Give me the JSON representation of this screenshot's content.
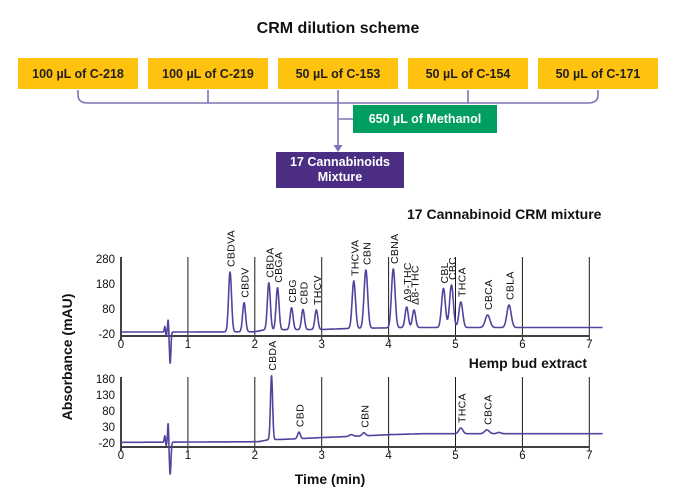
{
  "diagram": {
    "title": "CRM dilution scheme",
    "source_boxes": [
      "100 µL of C-218",
      "100 µL of C-219",
      "50 µL of C-153",
      "50 µL of C-154",
      "50 µL of C-171"
    ],
    "solvent_label": "650 µL of Methanol",
    "mixture_label_line1": "17 Cannabinoids",
    "mixture_label_line2": "Mixture"
  },
  "colors": {
    "source_box": "#FFC20E",
    "solvent_box": "#009E60",
    "mixture_box": "#4B2E83",
    "connector": "#8272b5",
    "trace": "#53439e",
    "gridline": "#1a1a1a",
    "axis": "#404040"
  },
  "chart_data": [
    {
      "type": "line",
      "title": "17 Cannabinoid CRM mixture",
      "ylabel": "Absorbance (mAU)",
      "xlabel": "Time (min)",
      "xlim": [
        0,
        7.2
      ],
      "ylim": [
        -20,
        280
      ],
      "xticks": [
        0,
        1,
        2,
        3,
        4,
        5,
        6,
        7
      ],
      "yticks": [
        280,
        180,
        80,
        -20
      ],
      "grid": "vertical lines at x = 1..7",
      "baseline_mAU": [
        [
          0,
          -12
        ],
        [
          0.9,
          -12
        ],
        [
          2.0,
          -11
        ],
        [
          2.15,
          -3
        ],
        [
          3.0,
          -2
        ],
        [
          3.4,
          2
        ],
        [
          4.3,
          6
        ],
        [
          7.2,
          6
        ]
      ],
      "peaks": [
        {
          "label": "CBDVA",
          "t": 1.63,
          "mAU": 228,
          "sigma": 0.022
        },
        {
          "label": "CBDV",
          "t": 1.84,
          "mAU": 105,
          "sigma": 0.022
        },
        {
          "label": "CBDA",
          "t": 2.21,
          "mAU": 185,
          "sigma": 0.022
        },
        {
          "label": "CBGA",
          "t": 2.34,
          "mAU": 165,
          "sigma": 0.022
        },
        {
          "label": "CBG",
          "t": 2.55,
          "mAU": 85,
          "sigma": 0.022
        },
        {
          "label": "CBD",
          "t": 2.72,
          "mAU": 78,
          "sigma": 0.022
        },
        {
          "label": "THCV",
          "t": 2.92,
          "mAU": 76,
          "sigma": 0.022
        },
        {
          "label": "THCVA",
          "t": 3.48,
          "mAU": 192,
          "sigma": 0.025
        },
        {
          "label": "CBN",
          "t": 3.66,
          "mAU": 236,
          "sigma": 0.027
        },
        {
          "label": "CBNA",
          "t": 4.07,
          "mAU": 240,
          "sigma": 0.027
        },
        {
          "label": "Δ9-THC",
          "t": 4.27,
          "mAU": 88,
          "sigma": 0.024
        },
        {
          "label": "Δ8-THC",
          "t": 4.38,
          "mAU": 76,
          "sigma": 0.024
        },
        {
          "label": "CBL",
          "t": 4.82,
          "mAU": 162,
          "sigma": 0.028
        },
        {
          "label": "CBC",
          "t": 4.94,
          "mAU": 176,
          "sigma": 0.028
        },
        {
          "label": "THCA",
          "t": 5.08,
          "mAU": 108,
          "sigma": 0.028
        },
        {
          "label": "CBCA",
          "t": 5.48,
          "mAU": 56,
          "sigma": 0.035
        },
        {
          "label": "CBLA",
          "t": 5.8,
          "mAU": 96,
          "sigma": 0.032
        }
      ],
      "system_peaks": [
        {
          "t": 0.655,
          "delta_mAU": 22,
          "sigma": 0.008
        },
        {
          "t": 0.675,
          "delta_mAU": -18,
          "sigma": 0.006
        },
        {
          "t": 0.705,
          "delta_mAU": 50,
          "sigma": 0.008
        },
        {
          "t": 0.735,
          "delta_mAU": -125,
          "sigma": 0.011
        }
      ]
    },
    {
      "type": "line",
      "title": "Hemp bud extract",
      "ylabel": "Absorbance (mAU)",
      "xlabel": "Time (min)",
      "xlim": [
        0,
        7.2
      ],
      "ylim": [
        -20,
        180
      ],
      "xticks": [
        0,
        1,
        2,
        3,
        4,
        5,
        6,
        7
      ],
      "yticks": [
        180,
        130,
        80,
        30,
        -20
      ],
      "grid": "vertical lines at x = 1..7",
      "baseline_mAU": [
        [
          0,
          -18
        ],
        [
          1.0,
          -17
        ],
        [
          2.05,
          -16
        ],
        [
          2.2,
          -10
        ],
        [
          2.5,
          -8
        ],
        [
          3.0,
          -3
        ],
        [
          3.6,
          2
        ],
        [
          4.0,
          6
        ],
        [
          4.5,
          9
        ],
        [
          7.2,
          9
        ]
      ],
      "peaks": [
        {
          "label": "CBDA",
          "t": 2.25,
          "mAU": 190,
          "sigma": 0.016
        },
        {
          "label": "CBD",
          "t": 2.66,
          "mAU": 14,
          "sigma": 0.02
        },
        {
          "label": "",
          "t": 3.44,
          "mAU": 6,
          "sigma": 0.03
        },
        {
          "label": "CBN",
          "t": 3.63,
          "mAU": 12,
          "sigma": 0.025
        },
        {
          "label": "THCA",
          "t": 5.08,
          "mAU": 27,
          "sigma": 0.03
        },
        {
          "label": "CBCA",
          "t": 5.47,
          "mAU": 21,
          "sigma": 0.035
        },
        {
          "label": "",
          "t": 5.65,
          "mAU": 13,
          "sigma": 0.03
        }
      ],
      "system_peaks": [
        {
          "t": 0.655,
          "delta_mAU": 20,
          "sigma": 0.008
        },
        {
          "t": 0.675,
          "delta_mAU": -12,
          "sigma": 0.006
        },
        {
          "t": 0.705,
          "delta_mAU": 62,
          "sigma": 0.008
        },
        {
          "t": 0.735,
          "delta_mAU": -100,
          "sigma": 0.012
        }
      ]
    }
  ]
}
